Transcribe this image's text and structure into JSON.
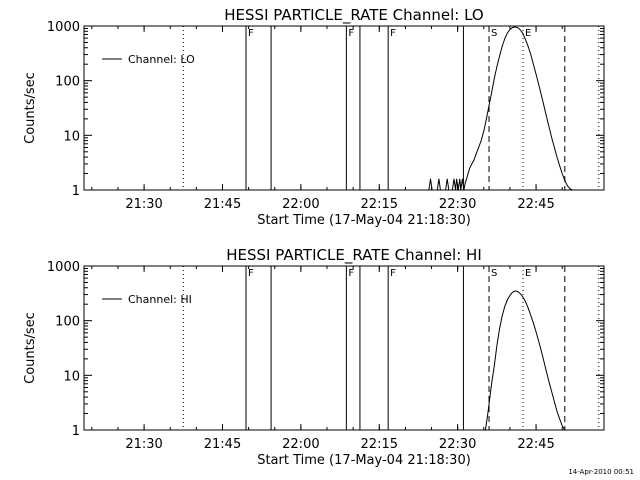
{
  "timestamp": "14-Apr-2010 00:51",
  "chart_data": [
    {
      "type": "line",
      "title": "HESSI PARTICLE_RATE Channel: LO",
      "xlabel": "Start Time (17-May-04 21:18:30)",
      "ylabel": "Counts/sec",
      "y_scale": "log",
      "ylim": [
        1,
        1000
      ],
      "xlim_minutes": [
        0,
        99.5
      ],
      "x_ticks": [
        {
          "label": "21:30",
          "minutes": 11.5
        },
        {
          "label": "21:45",
          "minutes": 26.5
        },
        {
          "label": "22:00",
          "minutes": 41.5
        },
        {
          "label": "22:15",
          "minutes": 56.5
        },
        {
          "label": "22:30",
          "minutes": 71.5
        },
        {
          "label": "22:45",
          "minutes": 86.5
        }
      ],
      "y_ticks": [
        "1",
        "10",
        "100",
        "1000"
      ],
      "legend": {
        "label": "Channel: LO",
        "placement": "top-left"
      },
      "markers": [
        {
          "minutes": 19.0,
          "style": "dotted",
          "label": ""
        },
        {
          "minutes": 31.0,
          "style": "solid",
          "label": "F"
        },
        {
          "minutes": 35.8,
          "style": "solid",
          "label": ""
        },
        {
          "minutes": 50.2,
          "style": "solid",
          "label": "F"
        },
        {
          "minutes": 52.8,
          "style": "solid",
          "label": ""
        },
        {
          "minutes": 58.2,
          "style": "solid",
          "label": "F"
        },
        {
          "minutes": 72.6,
          "style": "solid",
          "label": ""
        },
        {
          "minutes": 77.5,
          "style": "dashed",
          "label": "S"
        },
        {
          "minutes": 84.0,
          "style": "dotted",
          "label": "E"
        },
        {
          "minutes": 92.0,
          "style": "dashed",
          "label": ""
        },
        {
          "minutes": 98.5,
          "style": "dotted",
          "label": ""
        }
      ],
      "series": [
        {
          "x": [
            66.0,
            66.3,
            66.6,
            67.6,
            67.9,
            68.2,
            69.2,
            69.5,
            69.8,
            70.5,
            70.8,
            71.1,
            71.3,
            71.6,
            71.9,
            72.1,
            72.4,
            72.7,
            72.9,
            73.2,
            73.5,
            73.8,
            74.2,
            74.6,
            75.0,
            75.5,
            76.0,
            76.5,
            77.0,
            77.5,
            78.0,
            78.5,
            79.0,
            79.5,
            80.0,
            80.5,
            81.0,
            81.5,
            82.0,
            82.5,
            83.0,
            83.5,
            84.0,
            84.5,
            85.0,
            85.5,
            86.0,
            86.5,
            87.0,
            87.5,
            88.0,
            88.5,
            89.0,
            89.5,
            90.0,
            90.5,
            91.0,
            91.5,
            92.0,
            92.5,
            93.0,
            93.5
          ],
          "y": [
            1,
            1.6,
            1,
            1,
            1.6,
            1,
            1,
            1.6,
            1,
            1,
            1.6,
            1,
            1.6,
            1,
            1.6,
            1,
            1.6,
            1,
            1.3,
            1.6,
            2,
            2.5,
            3,
            3.5,
            4.5,
            6,
            8,
            12,
            20,
            35,
            60,
            110,
            180,
            280,
            420,
            580,
            740,
            860,
            940,
            960,
            930,
            850,
            720,
            560,
            420,
            300,
            200,
            130,
            85,
            55,
            35,
            22,
            14,
            9,
            6,
            4,
            2.8,
            2,
            1.5,
            1.2,
            1.05,
            1
          ]
        }
      ]
    },
    {
      "type": "line",
      "title": "HESSI PARTICLE_RATE Channel: HI",
      "xlabel": "Start Time (17-May-04 21:18:30)",
      "ylabel": "Counts/sec",
      "y_scale": "log",
      "ylim": [
        1,
        1000
      ],
      "xlim_minutes": [
        0,
        99.5
      ],
      "x_ticks": [
        {
          "label": "21:30",
          "minutes": 11.5
        },
        {
          "label": "21:45",
          "minutes": 26.5
        },
        {
          "label": "22:00",
          "minutes": 41.5
        },
        {
          "label": "22:15",
          "minutes": 56.5
        },
        {
          "label": "22:30",
          "minutes": 71.5
        },
        {
          "label": "22:45",
          "minutes": 86.5
        }
      ],
      "y_ticks": [
        "1",
        "10",
        "100",
        "1000"
      ],
      "legend": {
        "label": "Channel: HI",
        "placement": "top-left"
      },
      "markers": [
        {
          "minutes": 19.0,
          "style": "dotted",
          "label": ""
        },
        {
          "minutes": 31.0,
          "style": "solid",
          "label": "F"
        },
        {
          "minutes": 35.8,
          "style": "solid",
          "label": ""
        },
        {
          "minutes": 50.2,
          "style": "solid",
          "label": "F"
        },
        {
          "minutes": 52.8,
          "style": "solid",
          "label": ""
        },
        {
          "minutes": 58.2,
          "style": "solid",
          "label": "F"
        },
        {
          "minutes": 72.6,
          "style": "solid",
          "label": ""
        },
        {
          "minutes": 77.5,
          "style": "dashed",
          "label": "S"
        },
        {
          "minutes": 84.0,
          "style": "dotted",
          "label": "E"
        },
        {
          "minutes": 92.0,
          "style": "dashed",
          "label": ""
        },
        {
          "minutes": 98.5,
          "style": "dotted",
          "label": ""
        }
      ],
      "series": [
        {
          "x": [
            76.8,
            77.2,
            77.6,
            78.0,
            78.5,
            79.0,
            79.5,
            80.0,
            80.5,
            81.0,
            81.5,
            82.0,
            82.5,
            83.0,
            83.5,
            84.0,
            84.5,
            85.0,
            85.5,
            86.0,
            86.5,
            87.0,
            87.5,
            88.0,
            88.5,
            89.0,
            89.5,
            90.0,
            90.5,
            91.0,
            91.5,
            92.0
          ],
          "y": [
            1,
            1.8,
            3.5,
            7,
            15,
            35,
            70,
            120,
            180,
            240,
            290,
            330,
            350,
            340,
            310,
            270,
            220,
            170,
            125,
            90,
            62,
            42,
            28,
            18,
            11.5,
            7.5,
            5,
            3.3,
            2.2,
            1.6,
            1.2,
            1
          ]
        }
      ]
    }
  ]
}
